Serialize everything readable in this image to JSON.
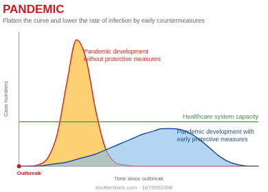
{
  "chart_data": {
    "type": "line",
    "title": "PANDEMIC",
    "subtitle": "Flatten the curve and lower the rate of infection by early countermeasures",
    "x_label": "Time since outbreak",
    "y_label": "Case numbers",
    "x": [
      0,
      4,
      8,
      12,
      16,
      20,
      24,
      28,
      32,
      36,
      40,
      44,
      48,
      52,
      56,
      60,
      64,
      68,
      72,
      76,
      80,
      84,
      88,
      92,
      96,
      100
    ],
    "series": [
      {
        "name": "Pandemic development\nwithout protective measures",
        "color": "#e2231a",
        "values": [
          0,
          0,
          1,
          6,
          24,
          62,
          94,
          80,
          42,
          14,
          3,
          1,
          0,
          0,
          0,
          0,
          0,
          0,
          0,
          0,
          0,
          0,
          0,
          0,
          0,
          0
        ]
      },
      {
        "name": "Pandemic development with\nearly protective measures",
        "color": "#1f4e9a",
        "values": [
          0,
          0,
          0,
          1,
          2,
          3,
          5,
          7,
          9,
          12,
          15,
          18,
          21,
          24,
          26,
          28,
          28,
          27,
          24,
          19,
          13,
          7,
          3,
          1,
          0,
          0
        ]
      },
      {
        "name": "Healthcare system capacity",
        "color": "#3a9a3a",
        "values": [
          33,
          33,
          33,
          33,
          33,
          33,
          33,
          33,
          33,
          33,
          33,
          33,
          33,
          33,
          33,
          33,
          33,
          33,
          33,
          33,
          33,
          33,
          33,
          33,
          33,
          33
        ]
      }
    ],
    "xlim": [
      0,
      100
    ],
    "ylim": [
      0,
      100
    ],
    "grid": false,
    "tick_labels": false,
    "annotations": [
      {
        "text": "Outbreak",
        "x": 0,
        "y": 0,
        "marker": "circle",
        "color": "#d4171e"
      },
      {
        "text": "shutterstock.com · 1675952398",
        "color": "#999999"
      }
    ]
  }
}
